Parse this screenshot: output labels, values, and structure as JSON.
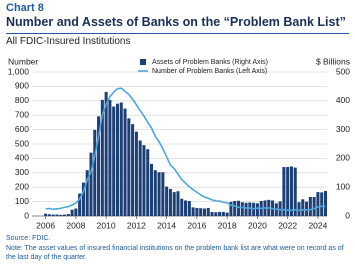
{
  "chart_data": {
    "type": "bar-line",
    "label": "Chart 8",
    "title": "Number and Assets of Banks on the “Problem Bank List”",
    "subtitle": "All FDIC-Insured Institutions",
    "y_label": "Number",
    "y2_label": "$ Billions",
    "source": "Source: FDIC.",
    "note": "Note: The asset values of insured financial institutions on the problem bank list are what were on record as of the last day of the quarter.",
    "xlim": [
      2005.1,
      2024.6
    ],
    "xticks": [
      2006,
      2008,
      2010,
      2012,
      2014,
      2016,
      2018,
      2020,
      2022,
      2024
    ],
    "ylim": [
      0,
      1000
    ],
    "yticks": [
      0,
      100,
      200,
      300,
      400,
      500,
      600,
      700,
      800,
      900,
      {
        "value": 1000,
        "label": "1,000"
      }
    ],
    "y2lim": [
      0,
      500
    ],
    "y2ticks": [
      0,
      100,
      200,
      300,
      400,
      500
    ],
    "legend": "top",
    "x": [
      2006,
      2006.25,
      2006.5,
      2006.75,
      2007,
      2007.25,
      2007.5,
      2007.75,
      2008,
      2008.25,
      2008.5,
      2008.75,
      2009,
      2009.25,
      2009.5,
      2009.75,
      2010,
      2010.25,
      2010.5,
      2010.75,
      2011,
      2011.25,
      2011.5,
      2011.75,
      2012,
      2012.25,
      2012.5,
      2012.75,
      2013,
      2013.25,
      2013.5,
      2013.75,
      2014,
      2014.25,
      2014.5,
      2014.75,
      2015,
      2015.25,
      2015.5,
      2015.75,
      2016,
      2016.25,
      2016.5,
      2016.75,
      2017,
      2017.25,
      2017.5,
      2017.75,
      2018,
      2018.25,
      2018.5,
      2018.75,
      2019,
      2019.25,
      2019.5,
      2019.75,
      2020,
      2020.25,
      2020.5,
      2020.75,
      2021,
      2021.25,
      2021.5,
      2021.75,
      2022,
      2022.25,
      2022.5,
      2022.75,
      2023,
      2023.25,
      2023.5,
      2023.75,
      2024,
      2024.25,
      2024.5
    ],
    "series": [
      {
        "name": "Assets of Problem Banks (Right Axis)",
        "color": "#1c3f75",
        "type": "bar",
        "axis": "y2",
        "values": [
          8,
          6,
          5,
          5,
          4,
          5,
          7,
          22,
          26,
          78,
          116,
          159,
          220,
          299,
          346,
          403,
          431,
          403,
          380,
          390,
          394,
          373,
          339,
          319,
          293,
          262,
          246,
          232,
          181,
          159,
          152,
          152,
          102,
          94,
          83,
          86,
          60,
          54,
          52,
          30,
          28,
          27,
          26,
          28,
          14,
          13,
          14,
          14,
          12,
          49,
          52,
          53,
          48,
          46,
          47,
          46,
          44,
          52,
          54,
          56,
          54,
          44,
          51,
          170,
          170,
          172,
          168,
          48,
          58,
          50,
          66,
          66,
          83,
          82,
          87
        ]
      },
      {
        "name": "Number of Problem Banks (Left Axis)",
        "color": "#4ba6e0",
        "type": "line",
        "values": [
          50,
          52,
          47,
          50,
          53,
          61,
          65,
          76,
          90,
          117,
          171,
          252,
          305,
          416,
          552,
          702,
          775,
          829,
          860,
          884,
          888,
          865,
          844,
          813,
          772,
          732,
          694,
          651,
          612,
          553,
          515,
          467,
          411,
          354,
          329,
          291,
          253,
          228,
          203,
          183,
          165,
          147,
          132,
          123,
          112,
          105,
          104,
          95,
          92,
          75,
          71,
          60,
          59,
          56,
          55,
          51,
          54,
          53,
          56,
          56,
          51,
          47,
          44,
          44,
          40,
          40,
          44,
          39,
          43,
          43,
          44,
          52,
          63,
          68,
          66
        ]
      }
    ]
  }
}
